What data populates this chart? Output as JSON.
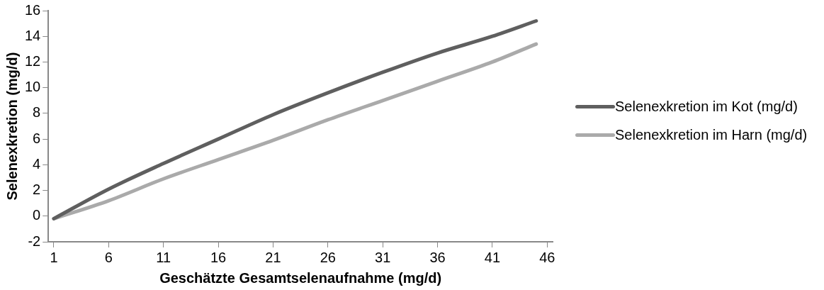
{
  "chart_data": {
    "type": "line",
    "xlabel": "Geschätzte Gesamtselenaufnahme (mg/d)",
    "ylabel": "Selenexkretion (mg/d)",
    "xlim": [
      0.5,
      46.5
    ],
    "xticks": [
      1,
      6,
      11,
      16,
      21,
      26,
      31,
      36,
      41,
      46
    ],
    "ylim": [
      -2,
      16
    ],
    "yticks": [
      -2,
      0,
      2,
      4,
      6,
      8,
      10,
      12,
      14,
      16
    ],
    "grid": false,
    "legend": "right",
    "marker": "none",
    "line_style": "solid",
    "series": [
      {
        "name": "Selenexkretion im Kot (mg/d)",
        "color": "#5f5f5f",
        "x": [
          1,
          6,
          11,
          16,
          21,
          26,
          31,
          36,
          41,
          45
        ],
        "values": [
          -0.2,
          2.1,
          4.1,
          6.0,
          7.9,
          9.6,
          11.2,
          12.7,
          14.0,
          15.2
        ]
      },
      {
        "name": "Selenexkretion im Harn (mg/d)",
        "color": "#aaaaaa",
        "x": [
          1,
          6,
          11,
          16,
          21,
          26,
          31,
          36,
          41,
          45
        ],
        "values": [
          -0.2,
          1.2,
          2.9,
          4.4,
          5.9,
          7.5,
          9.0,
          10.5,
          12.0,
          13.4
        ]
      }
    ]
  }
}
